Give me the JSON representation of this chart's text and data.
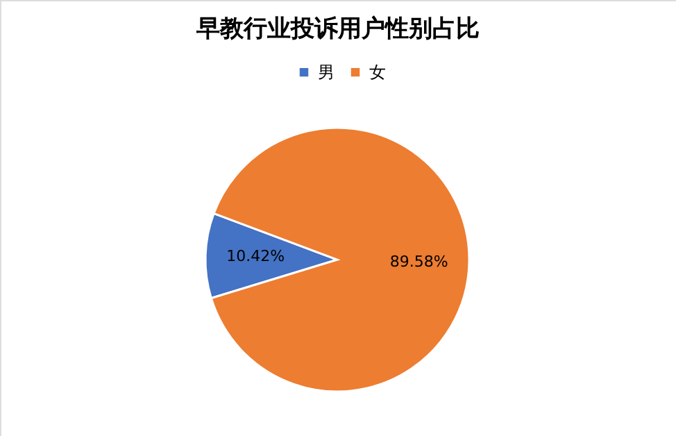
{
  "chart_data": {
    "type": "pie",
    "title": "早教行业投诉用户性别占比",
    "categories": [
      "男",
      "女"
    ],
    "values": [
      10.42,
      89.58
    ],
    "colors": [
      "#4472c4",
      "#ed7d31"
    ],
    "value_labels": [
      "10.42%",
      "89.58%"
    ],
    "legend": "top"
  }
}
